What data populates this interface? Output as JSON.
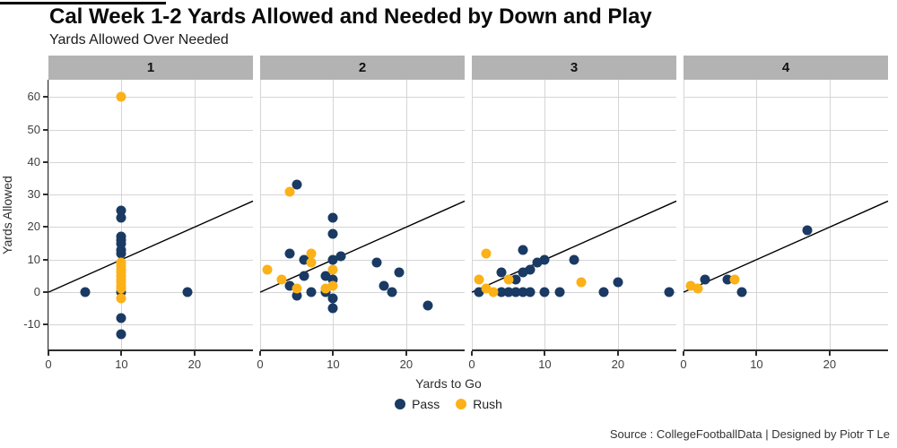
{
  "header": {
    "title": "Cal Week 1-2 Yards Allowed and Needed by Down and Play",
    "subtitle": "Yards Allowed Over Needed"
  },
  "caption": "Source : CollegeFootballData | Designed by Piotr T Le",
  "axes": {
    "x_label": "Yards to Go",
    "y_label": "Yards Allowed"
  },
  "legend": {
    "position": "bottom",
    "items": [
      {
        "label": "Pass",
        "key": "pass"
      },
      {
        "label": "Rush",
        "key": "rush"
      }
    ]
  },
  "colors": {
    "pass": "#1a3a64",
    "rush": "#fbb117",
    "strip_bg": "#b3b3b3",
    "grid": "#d5d5d5",
    "axis": "#2e2e2e",
    "reference_line": "#000000",
    "accent_bar": "#000000"
  },
  "chart_data": {
    "type": "scatter",
    "title": "Cal Week 1-2 Yards Allowed and Needed by Down and Play",
    "subtitle": "Yards Allowed Over Needed",
    "xlabel": "Yards to Go",
    "ylabel": "Yards Allowed",
    "facet_by": "Down",
    "x_ticks": [
      0,
      10,
      20
    ],
    "y_ticks": [
      60,
      50,
      40,
      30,
      20,
      10,
      0,
      -10
    ],
    "xlim": [
      0,
      28
    ],
    "ylim": [
      -17.6,
      65.3
    ],
    "grid": true,
    "legend_position": "bottom",
    "reference_line": "y = x (yards allowed equals yards needed)",
    "facets": [
      {
        "label": "1",
        "series": [
          {
            "name": "Pass",
            "points": [
              [
                5,
                0
              ],
              [
                19,
                0
              ],
              [
                10,
                25
              ],
              [
                10,
                23
              ],
              [
                10,
                17
              ],
              [
                10,
                16
              ],
              [
                10,
                15
              ],
              [
                10,
                13
              ],
              [
                10,
                12
              ],
              [
                10,
                0
              ],
              [
                10,
                -8
              ],
              [
                10,
                -13
              ]
            ]
          },
          {
            "name": "Rush",
            "points": [
              [
                10,
                60
              ],
              [
                10,
                9
              ],
              [
                10,
                8
              ],
              [
                10,
                7
              ],
              [
                10,
                6
              ],
              [
                10,
                5
              ],
              [
                10,
                4
              ],
              [
                10,
                3
              ],
              [
                10,
                2
              ],
              [
                10,
                1
              ],
              [
                10,
                -2
              ]
            ]
          }
        ]
      },
      {
        "label": "2",
        "series": [
          {
            "name": "Pass",
            "points": [
              [
                5,
                33
              ],
              [
                10,
                23
              ],
              [
                10,
                18
              ],
              [
                4,
                12
              ],
              [
                11,
                11
              ],
              [
                10,
                10
              ],
              [
                6,
                10
              ],
              [
                16,
                9
              ],
              [
                19,
                6
              ],
              [
                9,
                5
              ],
              [
                6,
                5
              ],
              [
                10,
                4
              ],
              [
                4,
                2
              ],
              [
                17,
                2
              ],
              [
                7,
                0
              ],
              [
                18,
                0
              ],
              [
                9,
                0
              ],
              [
                5,
                -1
              ],
              [
                10,
                -2
              ],
              [
                10,
                -5
              ],
              [
                23,
                -4
              ]
            ]
          },
          {
            "name": "Rush",
            "points": [
              [
                4,
                31
              ],
              [
                7,
                12
              ],
              [
                7,
                9
              ],
              [
                1,
                7
              ],
              [
                10,
                7
              ],
              [
                3,
                4
              ],
              [
                10,
                2
              ],
              [
                5,
                1
              ],
              [
                9,
                1
              ]
            ]
          }
        ]
      },
      {
        "label": "3",
        "series": [
          {
            "name": "Pass",
            "points": [
              [
                7,
                13
              ],
              [
                14,
                10
              ],
              [
                10,
                10
              ],
              [
                9,
                9
              ],
              [
                8,
                7
              ],
              [
                7,
                6
              ],
              [
                4,
                6
              ],
              [
                6,
                4
              ],
              [
                20,
                3
              ],
              [
                1,
                0
              ],
              [
                4,
                0
              ],
              [
                5,
                0
              ],
              [
                6,
                0
              ],
              [
                7,
                0
              ],
              [
                8,
                0
              ],
              [
                10,
                0
              ],
              [
                12,
                0
              ],
              [
                18,
                0
              ],
              [
                27,
                0
              ]
            ]
          },
          {
            "name": "Rush",
            "points": [
              [
                2,
                12
              ],
              [
                1,
                4
              ],
              [
                5,
                4
              ],
              [
                15,
                3
              ],
              [
                2,
                1
              ],
              [
                3,
                0
              ]
            ]
          }
        ]
      },
      {
        "label": "4",
        "series": [
          {
            "name": "Pass",
            "points": [
              [
                17,
                19
              ],
              [
                3,
                4
              ],
              [
                6,
                4
              ],
              [
                8,
                0
              ]
            ]
          },
          {
            "name": "Rush",
            "points": [
              [
                1,
                2
              ],
              [
                2,
                1
              ],
              [
                7,
                4
              ]
            ]
          }
        ]
      }
    ]
  }
}
